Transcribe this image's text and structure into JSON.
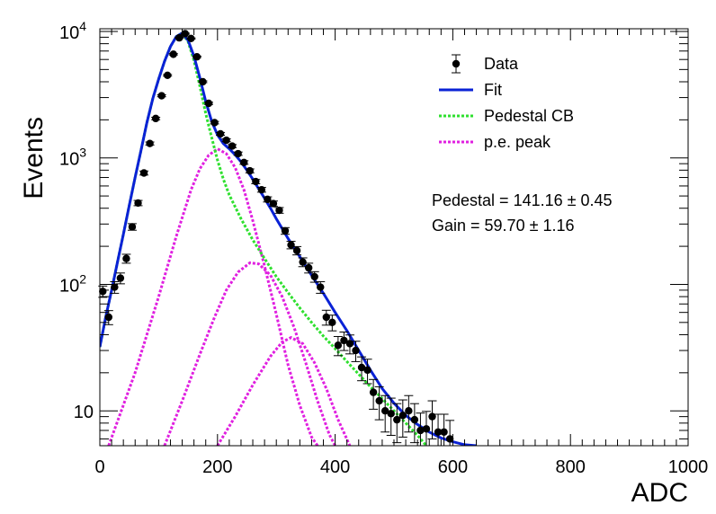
{
  "chart_data": {
    "type": "scatter",
    "title": "",
    "xlabel": "ADC",
    "ylabel": "Events",
    "xlim": [
      0,
      1000
    ],
    "ylim": [
      5.3,
      10500
    ],
    "yscale": "log",
    "grid": false,
    "legend_position": "top-right",
    "x_ticks": [
      "0",
      "200",
      "400",
      "600",
      "800",
      "1000"
    ],
    "y_ticks": [
      {
        "value": 10,
        "mantissa": "10",
        "exponent": ""
      },
      {
        "value": 100,
        "mantissa": "10",
        "exponent": "2"
      },
      {
        "value": 1000,
        "mantissa": "10",
        "exponent": "3"
      },
      {
        "value": 10000,
        "mantissa": "10",
        "exponent": "4"
      }
    ],
    "legend": [
      {
        "key": "data",
        "label": "Data",
        "color": "#000000",
        "style": "marker"
      },
      {
        "key": "fit",
        "label": "Fit",
        "color": "#0a22d6",
        "style": "solid"
      },
      {
        "key": "pedestal",
        "label": "Pedestal CB",
        "color": "#2fe02f",
        "style": "dotted"
      },
      {
        "key": "pe",
        "label": "p.e. peak",
        "color": "#e020e0",
        "style": "dotted"
      }
    ],
    "annotations": [
      "Pedestal = 141.16 ± 0.45",
      "Gain = 59.70 ± 1.16"
    ],
    "series": [
      {
        "name": "Data",
        "points": [
          [
            5,
            88
          ],
          [
            15,
            55
          ],
          [
            25,
            95
          ],
          [
            35,
            112
          ],
          [
            45,
            160
          ],
          [
            55,
            285
          ],
          [
            65,
            440
          ],
          [
            75,
            760
          ],
          [
            85,
            1300
          ],
          [
            95,
            2050
          ],
          [
            105,
            3100
          ],
          [
            115,
            4500
          ],
          [
            125,
            6600
          ],
          [
            135,
            8900
          ],
          [
            145,
            9600
          ],
          [
            155,
            8800
          ],
          [
            165,
            6300
          ],
          [
            175,
            4000
          ],
          [
            185,
            2700
          ],
          [
            195,
            1900
          ],
          [
            205,
            1550
          ],
          [
            215,
            1380
          ],
          [
            225,
            1240
          ],
          [
            235,
            1080
          ],
          [
            245,
            920
          ],
          [
            255,
            790
          ],
          [
            265,
            650
          ],
          [
            275,
            560
          ],
          [
            285,
            470
          ],
          [
            295,
            435
          ],
          [
            305,
            385
          ],
          [
            315,
            265
          ],
          [
            325,
            205
          ],
          [
            335,
            185
          ],
          [
            345,
            150
          ],
          [
            355,
            135
          ],
          [
            365,
            115
          ],
          [
            375,
            95
          ],
          [
            385,
            55
          ],
          [
            395,
            50
          ],
          [
            405,
            33
          ],
          [
            415,
            36
          ],
          [
            425,
            34
          ],
          [
            435,
            30
          ],
          [
            445,
            22
          ],
          [
            455,
            21
          ],
          [
            465,
            14
          ],
          [
            475,
            12
          ],
          [
            485,
            10
          ],
          [
            495,
            9.5
          ],
          [
            505,
            8.5
          ],
          [
            515,
            9.2
          ],
          [
            525,
            10
          ],
          [
            535,
            8.5
          ],
          [
            545,
            7.0
          ],
          [
            555,
            7.2
          ],
          [
            565,
            9.0
          ],
          [
            575,
            6.8
          ],
          [
            585,
            6.8
          ],
          [
            595,
            6.0
          ]
        ],
        "errors": [
          9,
          7,
          10,
          11,
          13,
          17,
          21,
          28,
          36,
          45,
          56,
          67,
          81,
          94,
          98,
          94,
          79,
          63,
          52,
          44,
          39,
          37,
          35,
          33,
          30,
          28,
          25,
          24,
          22,
          21,
          20,
          16,
          14,
          14,
          12,
          12,
          11,
          10,
          7.4,
          7.1,
          5.7,
          6,
          5.8,
          5.5,
          4.7,
          4.6,
          3.7,
          3.5,
          3.2,
          3.1,
          2.9,
          3.0,
          3.2,
          2.9,
          2.6,
          2.7,
          3.0,
          2.6,
          2.6,
          2.4
        ]
      },
      {
        "name": "Fit",
        "points": [
          [
            0,
            32
          ],
          [
            10,
            55
          ],
          [
            20,
            90
          ],
          [
            30,
            150
          ],
          [
            40,
            250
          ],
          [
            50,
            420
          ],
          [
            60,
            700
          ],
          [
            70,
            1150
          ],
          [
            80,
            1900
          ],
          [
            90,
            2950
          ],
          [
            100,
            4200
          ],
          [
            110,
            5800
          ],
          [
            120,
            7600
          ],
          [
            130,
            9100
          ],
          [
            140,
            9700
          ],
          [
            150,
            8500
          ],
          [
            160,
            6400
          ],
          [
            170,
            4300
          ],
          [
            180,
            2800
          ],
          [
            190,
            1950
          ],
          [
            200,
            1520
          ],
          [
            210,
            1300
          ],
          [
            220,
            1180
          ],
          [
            230,
            1060
          ],
          [
            240,
            930
          ],
          [
            250,
            800
          ],
          [
            260,
            680
          ],
          [
            270,
            570
          ],
          [
            280,
            480
          ],
          [
            290,
            400
          ],
          [
            300,
            330
          ],
          [
            320,
            230
          ],
          [
            340,
            165
          ],
          [
            360,
            118
          ],
          [
            380,
            85
          ],
          [
            400,
            60
          ],
          [
            420,
            43
          ],
          [
            440,
            30
          ],
          [
            460,
            21
          ],
          [
            480,
            15
          ],
          [
            500,
            11.5
          ],
          [
            520,
            9.2
          ],
          [
            540,
            7.8
          ],
          [
            560,
            6.8
          ],
          [
            580,
            6.1
          ],
          [
            600,
            5.7
          ],
          [
            620,
            5.4
          ],
          [
            640,
            5.3
          ]
        ]
      },
      {
        "name": "Pedestal CB",
        "points": [
          [
            0,
            32
          ],
          [
            10,
            55
          ],
          [
            20,
            90
          ],
          [
            30,
            150
          ],
          [
            40,
            250
          ],
          [
            50,
            420
          ],
          [
            60,
            700
          ],
          [
            70,
            1150
          ],
          [
            80,
            1900
          ],
          [
            90,
            2950
          ],
          [
            100,
            4200
          ],
          [
            110,
            5800
          ],
          [
            120,
            7600
          ],
          [
            130,
            9100
          ],
          [
            140,
            9700
          ],
          [
            150,
            8300
          ],
          [
            160,
            5900
          ],
          [
            170,
            3700
          ],
          [
            180,
            2250
          ],
          [
            190,
            1450
          ],
          [
            200,
            960
          ],
          [
            210,
            680
          ],
          [
            220,
            510
          ],
          [
            240,
            330
          ],
          [
            260,
            225
          ],
          [
            280,
            160
          ],
          [
            300,
            115
          ],
          [
            320,
            86
          ],
          [
            340,
            65
          ],
          [
            360,
            50
          ],
          [
            380,
            39
          ],
          [
            400,
            31
          ],
          [
            420,
            24.5
          ],
          [
            440,
            19.5
          ],
          [
            460,
            15.5
          ],
          [
            480,
            12.5
          ],
          [
            500,
            10
          ],
          [
            520,
            8.0
          ],
          [
            540,
            6.4
          ],
          [
            555,
            5.3
          ]
        ]
      },
      {
        "name": "p.e. peak 1",
        "points": [
          [
            15,
            5.3
          ],
          [
            60,
            20
          ],
          [
            100,
            80
          ],
          [
            130,
            240
          ],
          [
            155,
            560
          ],
          [
            170,
            820
          ],
          [
            185,
            1050
          ],
          [
            200,
            1180
          ],
          [
            215,
            1080
          ],
          [
            230,
            840
          ],
          [
            245,
            560
          ],
          [
            260,
            320
          ],
          [
            280,
            140
          ],
          [
            300,
            58
          ],
          [
            320,
            23
          ],
          [
            340,
            11
          ],
          [
            360,
            6.2
          ],
          [
            370,
            5.3
          ]
        ]
      },
      {
        "name": "p.e. peak 2",
        "points": [
          [
            110,
            5.3
          ],
          [
            140,
            12
          ],
          [
            170,
            28
          ],
          [
            195,
            55
          ],
          [
            215,
            90
          ],
          [
            235,
            125
          ],
          [
            255,
            148
          ],
          [
            270,
            145
          ],
          [
            290,
            118
          ],
          [
            310,
            80
          ],
          [
            330,
            46
          ],
          [
            350,
            24
          ],
          [
            370,
            12
          ],
          [
            390,
            6.5
          ],
          [
            400,
            5.3
          ]
        ]
      },
      {
        "name": "p.e. peak 3",
        "points": [
          [
            200,
            5.3
          ],
          [
            230,
            9
          ],
          [
            260,
            16
          ],
          [
            290,
            27
          ],
          [
            310,
            35
          ],
          [
            325,
            38
          ],
          [
            345,
            34
          ],
          [
            365,
            24
          ],
          [
            385,
            15
          ],
          [
            405,
            8.5
          ],
          [
            425,
            5.3
          ]
        ]
      }
    ]
  }
}
